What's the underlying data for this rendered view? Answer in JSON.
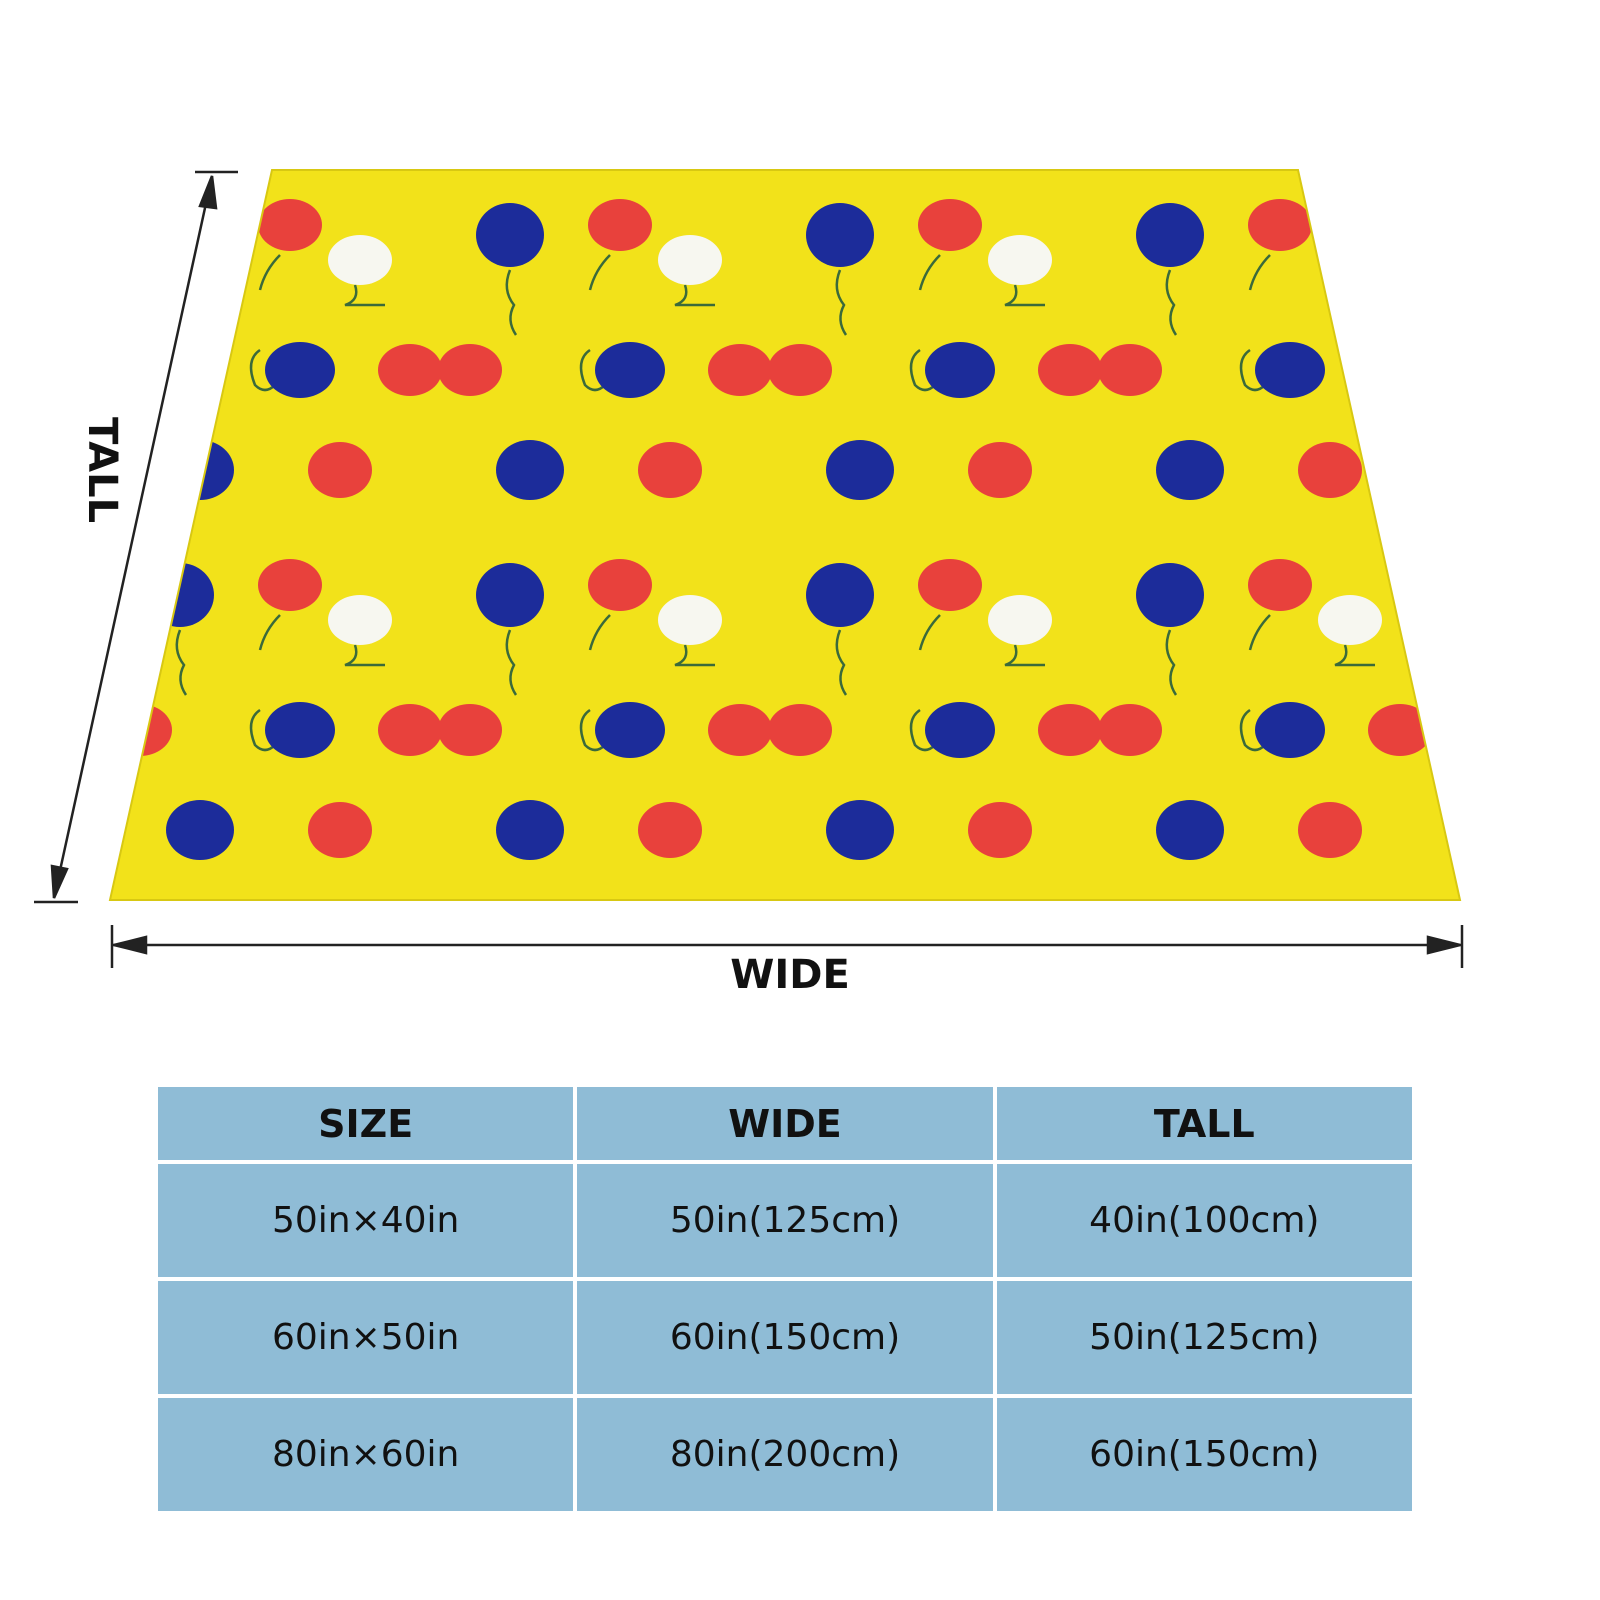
{
  "dimension_labels": {
    "tall": "TALL",
    "wide": "WIDE"
  },
  "table": {
    "header": [
      "SIZE",
      "WIDE",
      "TALL"
    ],
    "rows": [
      [
        "50in×40in",
        "50in(125cm)",
        "40in(100cm)"
      ],
      [
        "60in×50in",
        "60in(150cm)",
        "50in(125cm)"
      ],
      [
        "80in×60in",
        "80in(200cm)",
        "60in(150cm)"
      ]
    ]
  }
}
